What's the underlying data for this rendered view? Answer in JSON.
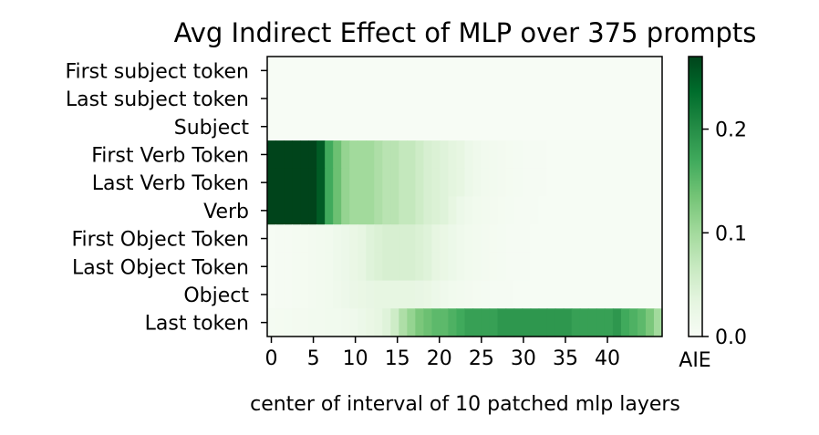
{
  "chart_data": {
    "type": "heatmap",
    "title": "Avg Indirect Effect of MLP over 375 prompts",
    "xlabel": "center of interval of 10 patched mlp layers",
    "ylabel": "",
    "colorbar_label": "AIE",
    "colormap": "Greens",
    "x_ticks": [
      0,
      5,
      10,
      15,
      20,
      25,
      30,
      35,
      40
    ],
    "x_tick_labels": [
      "0",
      "5",
      "10",
      "15",
      "20",
      "25",
      "30",
      "35",
      "40"
    ],
    "xlim": [
      0,
      47
    ],
    "rows": [
      "First subject token",
      "Last subject token",
      "Subject",
      "First Verb Token",
      "Last Verb Token",
      "Verb",
      "First Object Token",
      "Last Object Token",
      "Object",
      "Last token"
    ],
    "colorbar_ticks": [
      0.0,
      0.1,
      0.2
    ],
    "colorbar_tick_labels": [
      "0.0",
      "0.1",
      "0.2"
    ],
    "vmin": 0.0,
    "vmax": 0.27,
    "values": [
      [
        0,
        0,
        0,
        0,
        0,
        0,
        0,
        0,
        0,
        0,
        0,
        0,
        0,
        0,
        0,
        0,
        0,
        0,
        0,
        0,
        0,
        0,
        0,
        0,
        0,
        0,
        0,
        0,
        0,
        0,
        0,
        0,
        0,
        0,
        0,
        0,
        0,
        0,
        0,
        0,
        0,
        0,
        0,
        0,
        0,
        0,
        0,
        0
      ],
      [
        0,
        0,
        0,
        0,
        0,
        0,
        0,
        0,
        0,
        0,
        0,
        0,
        0,
        0,
        0,
        0,
        0,
        0,
        0,
        0,
        0,
        0,
        0,
        0,
        0,
        0,
        0,
        0,
        0,
        0,
        0,
        0,
        0,
        0,
        0,
        0,
        0,
        0,
        0,
        0,
        0,
        0,
        0,
        0,
        0,
        0,
        0,
        0
      ],
      [
        0,
        0,
        0,
        0,
        0,
        0,
        0,
        0,
        0,
        0,
        0,
        0,
        0,
        0,
        0,
        0,
        0,
        0,
        0,
        0,
        0,
        0,
        0,
        0,
        0,
        0,
        0,
        0,
        0,
        0,
        0,
        0,
        0,
        0,
        0,
        0,
        0,
        0,
        0,
        0,
        0,
        0,
        0,
        0,
        0,
        0,
        0,
        0
      ],
      [
        0.27,
        0.27,
        0.27,
        0.27,
        0.27,
        0.27,
        0.25,
        0.17,
        0.14,
        0.11,
        0.1,
        0.1,
        0.1,
        0.09,
        0.08,
        0.08,
        0.07,
        0.07,
        0.06,
        0.05,
        0.045,
        0.04,
        0.035,
        0.03,
        0.02,
        0.015,
        0.012,
        0.01,
        0.008,
        0.006,
        0.005,
        0.004,
        0.003,
        0.003,
        0.002,
        0.002,
        0.002,
        0.002,
        0.001,
        0.001,
        0.001,
        0.001,
        0.001,
        0.001,
        0.001,
        0.001,
        0.001,
        0.001
      ],
      [
        0.27,
        0.27,
        0.27,
        0.27,
        0.27,
        0.27,
        0.25,
        0.17,
        0.14,
        0.11,
        0.1,
        0.1,
        0.1,
        0.09,
        0.08,
        0.08,
        0.07,
        0.07,
        0.06,
        0.05,
        0.045,
        0.04,
        0.035,
        0.03,
        0.02,
        0.015,
        0.012,
        0.01,
        0.008,
        0.006,
        0.005,
        0.004,
        0.003,
        0.003,
        0.002,
        0.002,
        0.002,
        0.002,
        0.001,
        0.001,
        0.001,
        0.001,
        0.001,
        0.001,
        0.001,
        0.001,
        0.001,
        0.001
      ],
      [
        0.27,
        0.27,
        0.27,
        0.27,
        0.27,
        0.27,
        0.25,
        0.17,
        0.14,
        0.11,
        0.1,
        0.1,
        0.1,
        0.09,
        0.08,
        0.08,
        0.07,
        0.07,
        0.06,
        0.05,
        0.045,
        0.04,
        0.03,
        0.02,
        0.015,
        0.012,
        0.01,
        0.008,
        0.006,
        0.005,
        0.004,
        0.003,
        0.003,
        0.002,
        0.002,
        0.002,
        0.002,
        0.001,
        0.001,
        0.001,
        0.001,
        0.001,
        0.001,
        0.001,
        0.001,
        0.001,
        0.001,
        0.001
      ],
      [
        0.002,
        0.003,
        0.004,
        0.005,
        0.006,
        0.008,
        0.01,
        0.012,
        0.016,
        0.02,
        0.025,
        0.03,
        0.04,
        0.045,
        0.05,
        0.05,
        0.05,
        0.05,
        0.045,
        0.04,
        0.03,
        0.025,
        0.02,
        0.015,
        0.012,
        0.01,
        0.008,
        0.006,
        0.005,
        0.004,
        0.003,
        0.003,
        0.002,
        0.002,
        0.002,
        0.001,
        0.001,
        0.001,
        0.001,
        0.001,
        0.001,
        0.001,
        0.001,
        0.001,
        0.001,
        0.001,
        0.001,
        0.001
      ],
      [
        0.002,
        0.003,
        0.004,
        0.005,
        0.006,
        0.008,
        0.01,
        0.012,
        0.016,
        0.02,
        0.025,
        0.03,
        0.04,
        0.045,
        0.05,
        0.05,
        0.05,
        0.05,
        0.045,
        0.04,
        0.03,
        0.025,
        0.02,
        0.015,
        0.012,
        0.01,
        0.008,
        0.006,
        0.005,
        0.004,
        0.003,
        0.003,
        0.002,
        0.002,
        0.002,
        0.001,
        0.001,
        0.001,
        0.001,
        0.001,
        0.001,
        0.001,
        0.001,
        0.001,
        0.001,
        0.001,
        0.001,
        0.001
      ],
      [
        0.002,
        0.003,
        0.004,
        0.005,
        0.006,
        0.008,
        0.01,
        0.012,
        0.015,
        0.018,
        0.022,
        0.025,
        0.028,
        0.03,
        0.03,
        0.03,
        0.03,
        0.03,
        0.028,
        0.025,
        0.02,
        0.015,
        0.012,
        0.01,
        0.008,
        0.006,
        0.005,
        0.004,
        0.003,
        0.003,
        0.002,
        0.002,
        0.002,
        0.001,
        0.001,
        0.001,
        0.001,
        0.001,
        0.001,
        0.001,
        0.001,
        0.001,
        0.001,
        0.001,
        0.001,
        0.001,
        0.001,
        0.001
      ],
      [
        0.005,
        0.006,
        0.007,
        0.008,
        0.008,
        0.009,
        0.01,
        0.011,
        0.012,
        0.013,
        0.015,
        0.02,
        0.025,
        0.03,
        0.04,
        0.06,
        0.09,
        0.11,
        0.13,
        0.14,
        0.15,
        0.15,
        0.16,
        0.17,
        0.18,
        0.18,
        0.18,
        0.18,
        0.19,
        0.19,
        0.19,
        0.19,
        0.19,
        0.19,
        0.19,
        0.19,
        0.19,
        0.18,
        0.18,
        0.18,
        0.18,
        0.18,
        0.19,
        0.17,
        0.16,
        0.15,
        0.13,
        0.1
      ]
    ]
  }
}
